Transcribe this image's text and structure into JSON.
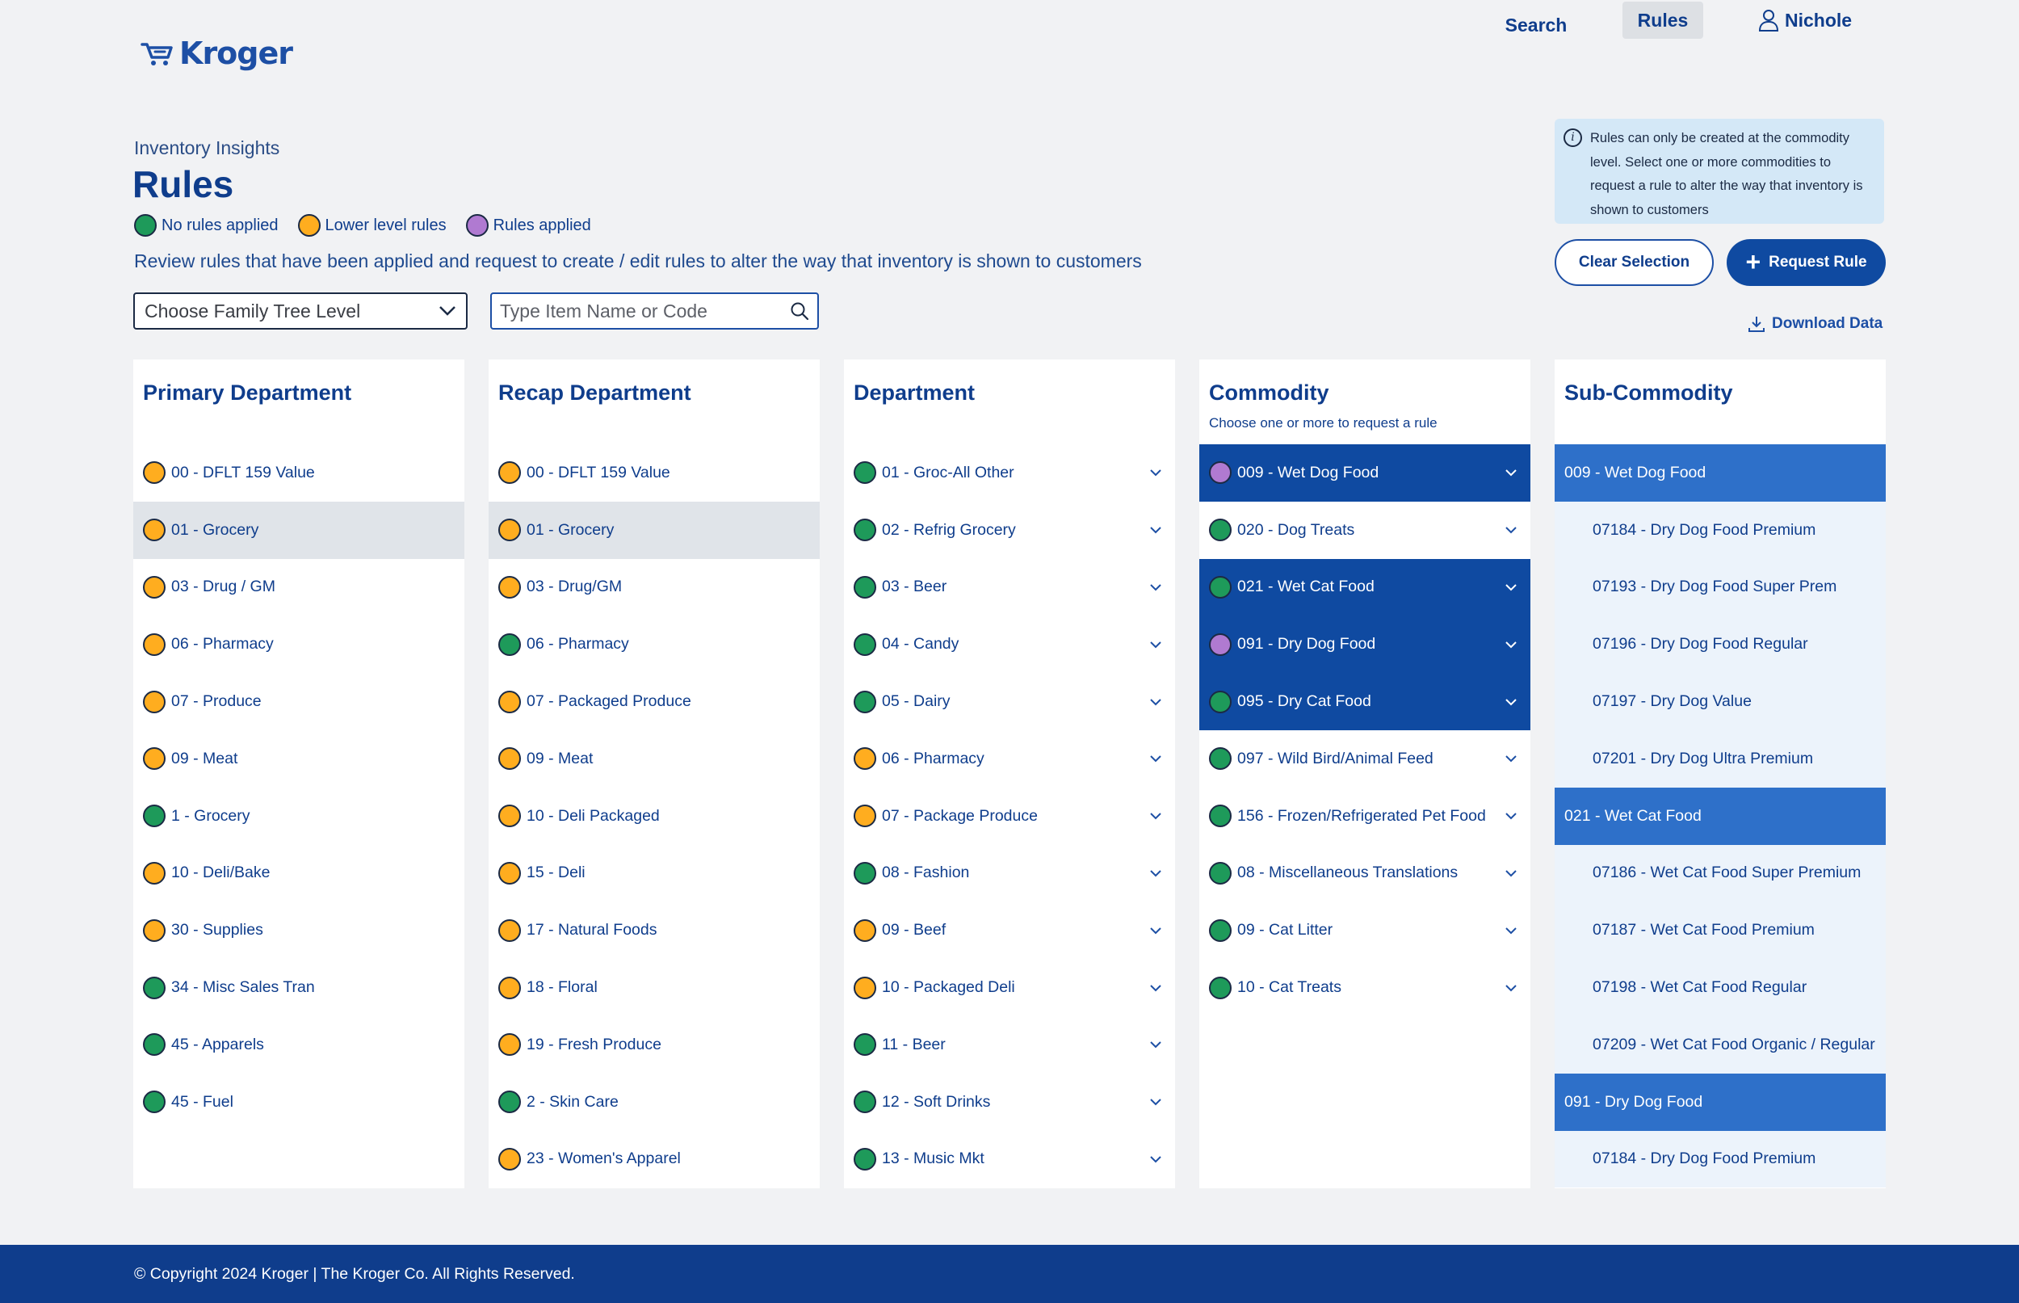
{
  "header": {
    "logo_text": "Kroger",
    "nav": {
      "search": "Search",
      "rules": "Rules",
      "user": "Nichole"
    }
  },
  "page": {
    "breadcrumb": "Inventory Insights",
    "title": "Rules",
    "legend": [
      {
        "label": "No rules applied",
        "color": "#1e9a5a"
      },
      {
        "label": "Lower level rules",
        "color": "#ffad1f"
      },
      {
        "label": "Rules applied",
        "color": "#b07ad1"
      }
    ],
    "description": "Review rules that have been applied and request to create / edit rules to alter the way that inventory is shown to customers"
  },
  "controls": {
    "family_select": "Choose Family Tree Level",
    "search_placeholder": "Type Item Name or Code",
    "info": "Rules can only be created at the commodity level. Select one or more commodities to request a rule to alter the way that inventory is shown to customers",
    "clear_label": "Clear Selection",
    "request_label": "Request Rule",
    "download_label": "Download Data"
  },
  "columns": {
    "primary": {
      "title": "Primary Department",
      "items": [
        {
          "label": "00 - DFLT 159 Value",
          "status": "orange"
        },
        {
          "label": "01 - Grocery",
          "status": "orange",
          "highlight": true
        },
        {
          "label": "03 - Drug / GM",
          "status": "orange"
        },
        {
          "label": "06 - Pharmacy",
          "status": "orange"
        },
        {
          "label": "07 - Produce",
          "status": "orange"
        },
        {
          "label": "09 - Meat",
          "status": "orange"
        },
        {
          "label": "1 - Grocery",
          "status": "green"
        },
        {
          "label": "10 - Deli/Bake",
          "status": "orange"
        },
        {
          "label": "30 - Supplies",
          "status": "orange"
        },
        {
          "label": "34 - Misc Sales Tran",
          "status": "green"
        },
        {
          "label": "45 - Apparels",
          "status": "green"
        },
        {
          "label": "45 - Fuel",
          "status": "green"
        }
      ]
    },
    "recap": {
      "title": "Recap Department",
      "items": [
        {
          "label": "00 - DFLT 159 Value",
          "status": "orange"
        },
        {
          "label": "01 - Grocery",
          "status": "orange",
          "highlight": true
        },
        {
          "label": "03 - Drug/GM",
          "status": "orange"
        },
        {
          "label": "06 - Pharmacy",
          "status": "green"
        },
        {
          "label": "07 - Packaged Produce",
          "status": "orange"
        },
        {
          "label": "09 - Meat",
          "status": "orange"
        },
        {
          "label": "10 - Deli Packaged",
          "status": "orange"
        },
        {
          "label": "15 - Deli",
          "status": "orange"
        },
        {
          "label": "17 - Natural Foods",
          "status": "orange"
        },
        {
          "label": "18 - Floral",
          "status": "orange"
        },
        {
          "label": "19 - Fresh Produce",
          "status": "orange"
        },
        {
          "label": "2 - Skin Care",
          "status": "green"
        },
        {
          "label": "23 - Women's Apparel",
          "status": "orange"
        }
      ]
    },
    "department": {
      "title": "Department",
      "items": [
        {
          "label": "01 - Groc-All Other",
          "status": "green"
        },
        {
          "label": "02 - Refrig Grocery",
          "status": "green"
        },
        {
          "label": "03 - Beer",
          "status": "green"
        },
        {
          "label": "04 - Candy",
          "status": "green"
        },
        {
          "label": "05 - Dairy",
          "status": "green"
        },
        {
          "label": "06 - Pharmacy",
          "status": "orange"
        },
        {
          "label": "07 - Package Produce",
          "status": "orange"
        },
        {
          "label": "08 - Fashion",
          "status": "green"
        },
        {
          "label": "09 - Beef",
          "status": "orange"
        },
        {
          "label": "10 - Packaged Deli",
          "status": "orange"
        },
        {
          "label": "11 - Beer",
          "status": "green"
        },
        {
          "label": "12 - Soft Drinks",
          "status": "green"
        },
        {
          "label": "13 - Music Mkt",
          "status": "green"
        }
      ]
    },
    "commodity": {
      "title": "Commodity",
      "subtitle": "Choose one or more to request a rule",
      "items": [
        {
          "label": "009 - Wet Dog Food",
          "status": "purple",
          "selected": true
        },
        {
          "label": "020 - Dog Treats",
          "status": "green"
        },
        {
          "label": "021 - Wet Cat Food",
          "status": "green",
          "selected": true
        },
        {
          "label": "091 - Dry Dog Food",
          "status": "purple",
          "selected": true
        },
        {
          "label": "095 - Dry Cat Food",
          "status": "green",
          "selected": true
        },
        {
          "label": "097 - Wild Bird/Animal Feed",
          "status": "green"
        },
        {
          "label": "156 - Frozen/Refrigerated Pet Food",
          "status": "green"
        },
        {
          "label": "08 - Miscellaneous Translations",
          "status": "green"
        },
        {
          "label": "09 - Cat Litter",
          "status": "green"
        },
        {
          "label": "10 - Cat Treats",
          "status": "green"
        }
      ]
    },
    "subcommodity": {
      "title": "Sub-Commodity",
      "items": [
        {
          "label": "009 - Wet Dog Food",
          "type": "header"
        },
        {
          "label": "07184 - Dry Dog Food Premium",
          "type": "item"
        },
        {
          "label": "07193 - Dry Dog Food Super Prem",
          "type": "item"
        },
        {
          "label": "07196 - Dry Dog Food Regular",
          "type": "item"
        },
        {
          "label": "07197 - Dry Dog Value",
          "type": "item"
        },
        {
          "label": "07201 - Dry Dog Ultra Premium",
          "type": "item"
        },
        {
          "label": "021 - Wet Cat Food",
          "type": "header"
        },
        {
          "label": "07186 - Wet Cat Food Super Premium",
          "type": "item"
        },
        {
          "label": "07187 - Wet Cat Food Premium",
          "type": "item"
        },
        {
          "label": "07198 - Wet Cat Food Regular",
          "type": "item"
        },
        {
          "label": "07209 - Wet Cat Food Organic / Regular",
          "type": "item"
        },
        {
          "label": "091 - Dry Dog Food",
          "type": "header"
        },
        {
          "label": "07184 - Dry Dog Food Premium",
          "type": "item"
        }
      ]
    }
  },
  "footer": {
    "text": "© Copyright 2024 Kroger | The Kroger Co. All Rights Reserved."
  }
}
